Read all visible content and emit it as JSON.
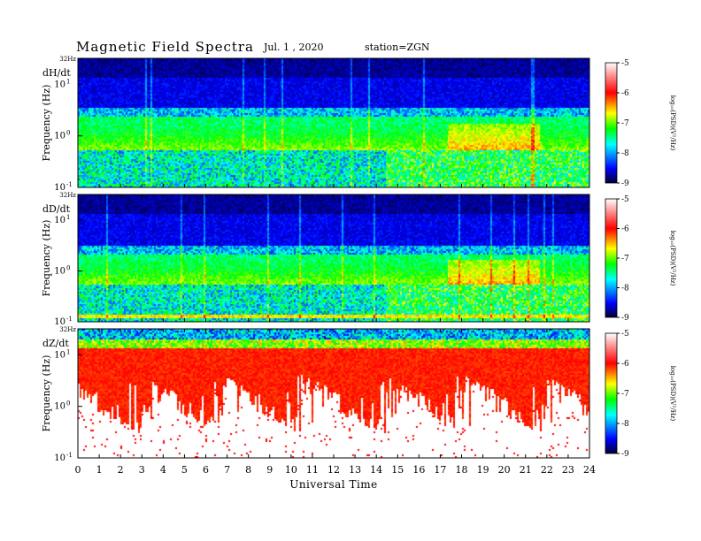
{
  "header": {
    "title": "Magnetic  Field  Spectra",
    "date": "Jul.  1  , 2020",
    "station": "station=ZGN"
  },
  "chart_data": [
    {
      "type": "heatmap",
      "panel_label": "dH/dt",
      "ylabel": "Frequency  (Hz)",
      "y_top_label": "32Hz",
      "y_ticks": [
        {
          "base": "10",
          "exp": "1",
          "value": 10
        },
        {
          "base": "10",
          "exp": "0",
          "value": 1
        },
        {
          "base": "10",
          "exp": "-1",
          "value": 0.1
        }
      ],
      "ylim": [
        0.1,
        32
      ],
      "y_scale": "log",
      "colorbar": {
        "label": "log₁₀(PSD)(V²/Hz)",
        "ticks": [
          "-5",
          "-6",
          "-7",
          "-8",
          "-9"
        ],
        "range": [
          -9,
          -5
        ]
      }
    },
    {
      "type": "heatmap",
      "panel_label": "dD/dt",
      "ylabel": "Frequency  (Hz)",
      "y_top_label": "32Hz",
      "y_ticks": [
        {
          "base": "10",
          "exp": "1",
          "value": 10
        },
        {
          "base": "10",
          "exp": "0",
          "value": 1
        },
        {
          "base": "10",
          "exp": "-1",
          "value": 0.1
        }
      ],
      "ylim": [
        0.1,
        32
      ],
      "y_scale": "log",
      "colorbar": {
        "label": "log₁₀(PSD)(V²/Hz)",
        "ticks": [
          "-5",
          "-6",
          "-7",
          "-8",
          "-9"
        ],
        "range": [
          -9,
          -5
        ]
      }
    },
    {
      "type": "heatmap",
      "panel_label": "dZ/dt",
      "ylabel": "Frequency  (Hz)",
      "y_top_label": "32Hz",
      "y_ticks": [
        {
          "base": "10",
          "exp": "1",
          "value": 10
        },
        {
          "base": "10",
          "exp": "0",
          "value": 1
        },
        {
          "base": "10",
          "exp": "-1",
          "value": 0.1
        }
      ],
      "ylim": [
        0.1,
        32
      ],
      "y_scale": "log",
      "colorbar": {
        "label": "log₁₀(PSD)(V²/Hz)",
        "ticks": [
          "-5",
          "-6",
          "-7",
          "-8",
          "-9"
        ],
        "range": [
          -9,
          -5
        ]
      }
    }
  ],
  "x_axis": {
    "label": "Universal  Time",
    "ticks": [
      "0",
      "1",
      "2",
      "3",
      "4",
      "5",
      "6",
      "7",
      "8",
      "9",
      "10",
      "11",
      "12",
      "13",
      "14",
      "15",
      "16",
      "17",
      "18",
      "19",
      "20",
      "21",
      "22",
      "23",
      "24"
    ],
    "range": [
      0,
      24
    ]
  },
  "colors": {
    "colormap": [
      "#000030",
      "#0000ff",
      "#00ffff",
      "#00ff00",
      "#ffff00",
      "#ff0000",
      "#ffffff"
    ]
  }
}
